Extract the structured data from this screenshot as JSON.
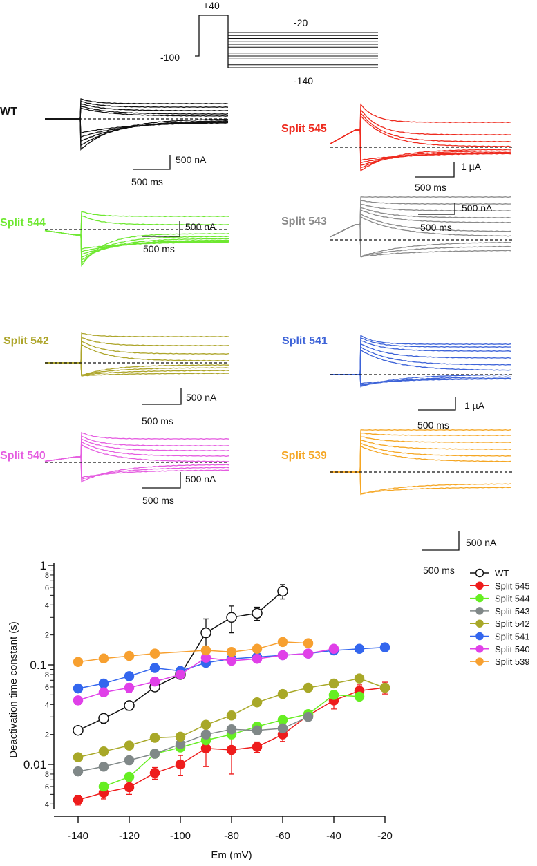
{
  "protocol": {
    "labels": {
      "top": "+40",
      "test_high": "-20",
      "hold": "-100",
      "test_low": "-140"
    }
  },
  "panels": [
    {
      "id": "wt",
      "label": "WT",
      "color": "#111111",
      "amp_label": "500 nA",
      "time_label": "500 ms"
    },
    {
      "id": "s545",
      "label": "Split 545",
      "color": "#ee2a1e",
      "amp_label": "1 µA",
      "time_label": "500 ms"
    },
    {
      "id": "s544",
      "label": "Split 544",
      "color": "#6ee830",
      "amp_label": "500 nA",
      "time_label": "500 ms"
    },
    {
      "id": "s543",
      "label": "Split 543",
      "color": "#8a8a8a",
      "amp_label": "500 nA",
      "time_label": "500 ms"
    },
    {
      "id": "s542",
      "label": "Split 542",
      "color": "#ada52a",
      "amp_label": "500 nA",
      "time_label": "500 ms"
    },
    {
      "id": "s541",
      "label": "Split 541",
      "color": "#3d63d8",
      "amp_label": "1 µA",
      "time_label": "500 ms"
    },
    {
      "id": "s540",
      "label": "Split 540",
      "color": "#e55ce0",
      "amp_label": "500 nA",
      "time_label": "500 ms"
    },
    {
      "id": "s539",
      "label": "Split 539",
      "color": "#f5a623",
      "amp_label": "500 nA",
      "time_label": "500 ms"
    }
  ],
  "chart_data": {
    "type": "line",
    "xlabel": "Em (mV)",
    "ylabel": "Deactivation time constant (s)",
    "yscale": "log",
    "xlim": [
      -145,
      -20
    ],
    "ylim": [
      0.0035,
      1
    ],
    "xticks": [
      "-140",
      "-120",
      "-100",
      "-80",
      "-60",
      "-40",
      "-20"
    ],
    "yticks_major": [
      "1",
      "0.1",
      "0.01"
    ],
    "yticks_minor_labels": [
      "8",
      "6",
      "4",
      "2"
    ],
    "legend_position": "right",
    "x": [
      -140,
      -130,
      -120,
      -110,
      -100,
      -90,
      -80,
      -70,
      -60,
      -50,
      -40,
      -30,
      -20
    ],
    "series": [
      {
        "name": "WT",
        "color": "#111111",
        "open": true,
        "values": [
          0.022,
          0.029,
          0.039,
          0.06,
          0.08,
          0.21,
          0.3,
          0.33,
          0.55,
          null,
          null,
          null,
          null
        ],
        "err": [
          0.001,
          0.003,
          0.004,
          0.005,
          0.004,
          0.08,
          0.09,
          0.05,
          0.09,
          null,
          null,
          null,
          null
        ]
      },
      {
        "name": "Split 545",
        "color": "#ee1c1c",
        "values": [
          0.0044,
          0.0052,
          0.0059,
          0.0082,
          0.01,
          0.0145,
          0.014,
          0.015,
          0.02,
          0.031,
          0.044,
          0.055,
          0.059
        ],
        "err": [
          0.0005,
          0.0007,
          0.0009,
          0.0011,
          0.0023,
          0.005,
          0.006,
          0.0018,
          0.003,
          0.003,
          0.008,
          0.008,
          0.008
        ]
      },
      {
        "name": "Split 544",
        "color": "#66ee22",
        "values": [
          null,
          0.006,
          0.0075,
          0.0128,
          0.0148,
          0.0175,
          0.02,
          0.024,
          0.028,
          0.032,
          0.05,
          0.048,
          null
        ],
        "err": [
          null,
          0.0003,
          0.0003,
          0.0005,
          0.0005,
          0.0005,
          0.0005,
          0.0005,
          0.0007,
          0.001,
          0.004,
          0.004,
          null
        ]
      },
      {
        "name": "Split 543",
        "color": "#808888",
        "values": [
          0.0085,
          0.0095,
          0.011,
          0.0128,
          0.016,
          0.02,
          0.0225,
          0.022,
          0.023,
          0.03,
          null,
          null,
          null
        ],
        "err": [
          0.0008,
          0.0008,
          0.001,
          0.001,
          0.001,
          0.001,
          0.001,
          0.0008,
          0.0008,
          0.002,
          null,
          null,
          null
        ]
      },
      {
        "name": "Split 542",
        "color": "#a8a828",
        "values": [
          0.0118,
          0.0135,
          0.0155,
          0.0185,
          0.019,
          0.025,
          0.031,
          0.042,
          0.051,
          0.059,
          0.065,
          0.073,
          0.059
        ],
        "err": [
          0.0005,
          0.0005,
          0.0005,
          0.0005,
          0.0005,
          0.0008,
          0.001,
          0.001,
          0.001,
          0.001,
          0.001,
          0.002,
          0.002
        ]
      },
      {
        "name": "Split 541",
        "color": "#3366ee",
        "values": [
          0.058,
          0.065,
          0.077,
          0.093,
          0.087,
          0.105,
          0.115,
          0.12,
          0.125,
          0.13,
          0.14,
          0.145,
          0.15
        ],
        "err": [
          0.002,
          0.002,
          0.002,
          0.003,
          0.003,
          0.003,
          0.003,
          0.003,
          0.003,
          0.003,
          0.003,
          0.003,
          0.003
        ]
      },
      {
        "name": "Split 540",
        "color": "#e040e8",
        "values": [
          0.044,
          0.053,
          0.059,
          0.068,
          0.08,
          0.118,
          0.11,
          0.115,
          0.125,
          0.13,
          0.145,
          null,
          null
        ],
        "err": [
          0.004,
          0.005,
          0.006,
          0.006,
          0.003,
          0.008,
          0.005,
          0.005,
          0.005,
          0.005,
          0.005,
          null,
          null
        ]
      },
      {
        "name": "Split 539",
        "color": "#f7a030",
        "values": [
          0.107,
          0.116,
          0.123,
          0.13,
          null,
          0.14,
          0.135,
          0.145,
          0.17,
          0.165,
          null,
          null,
          null
        ],
        "err": [
          0.003,
          0.003,
          0.003,
          0.003,
          null,
          0.003,
          0.003,
          0.003,
          0.004,
          0.004,
          null,
          null,
          null
        ]
      }
    ]
  }
}
